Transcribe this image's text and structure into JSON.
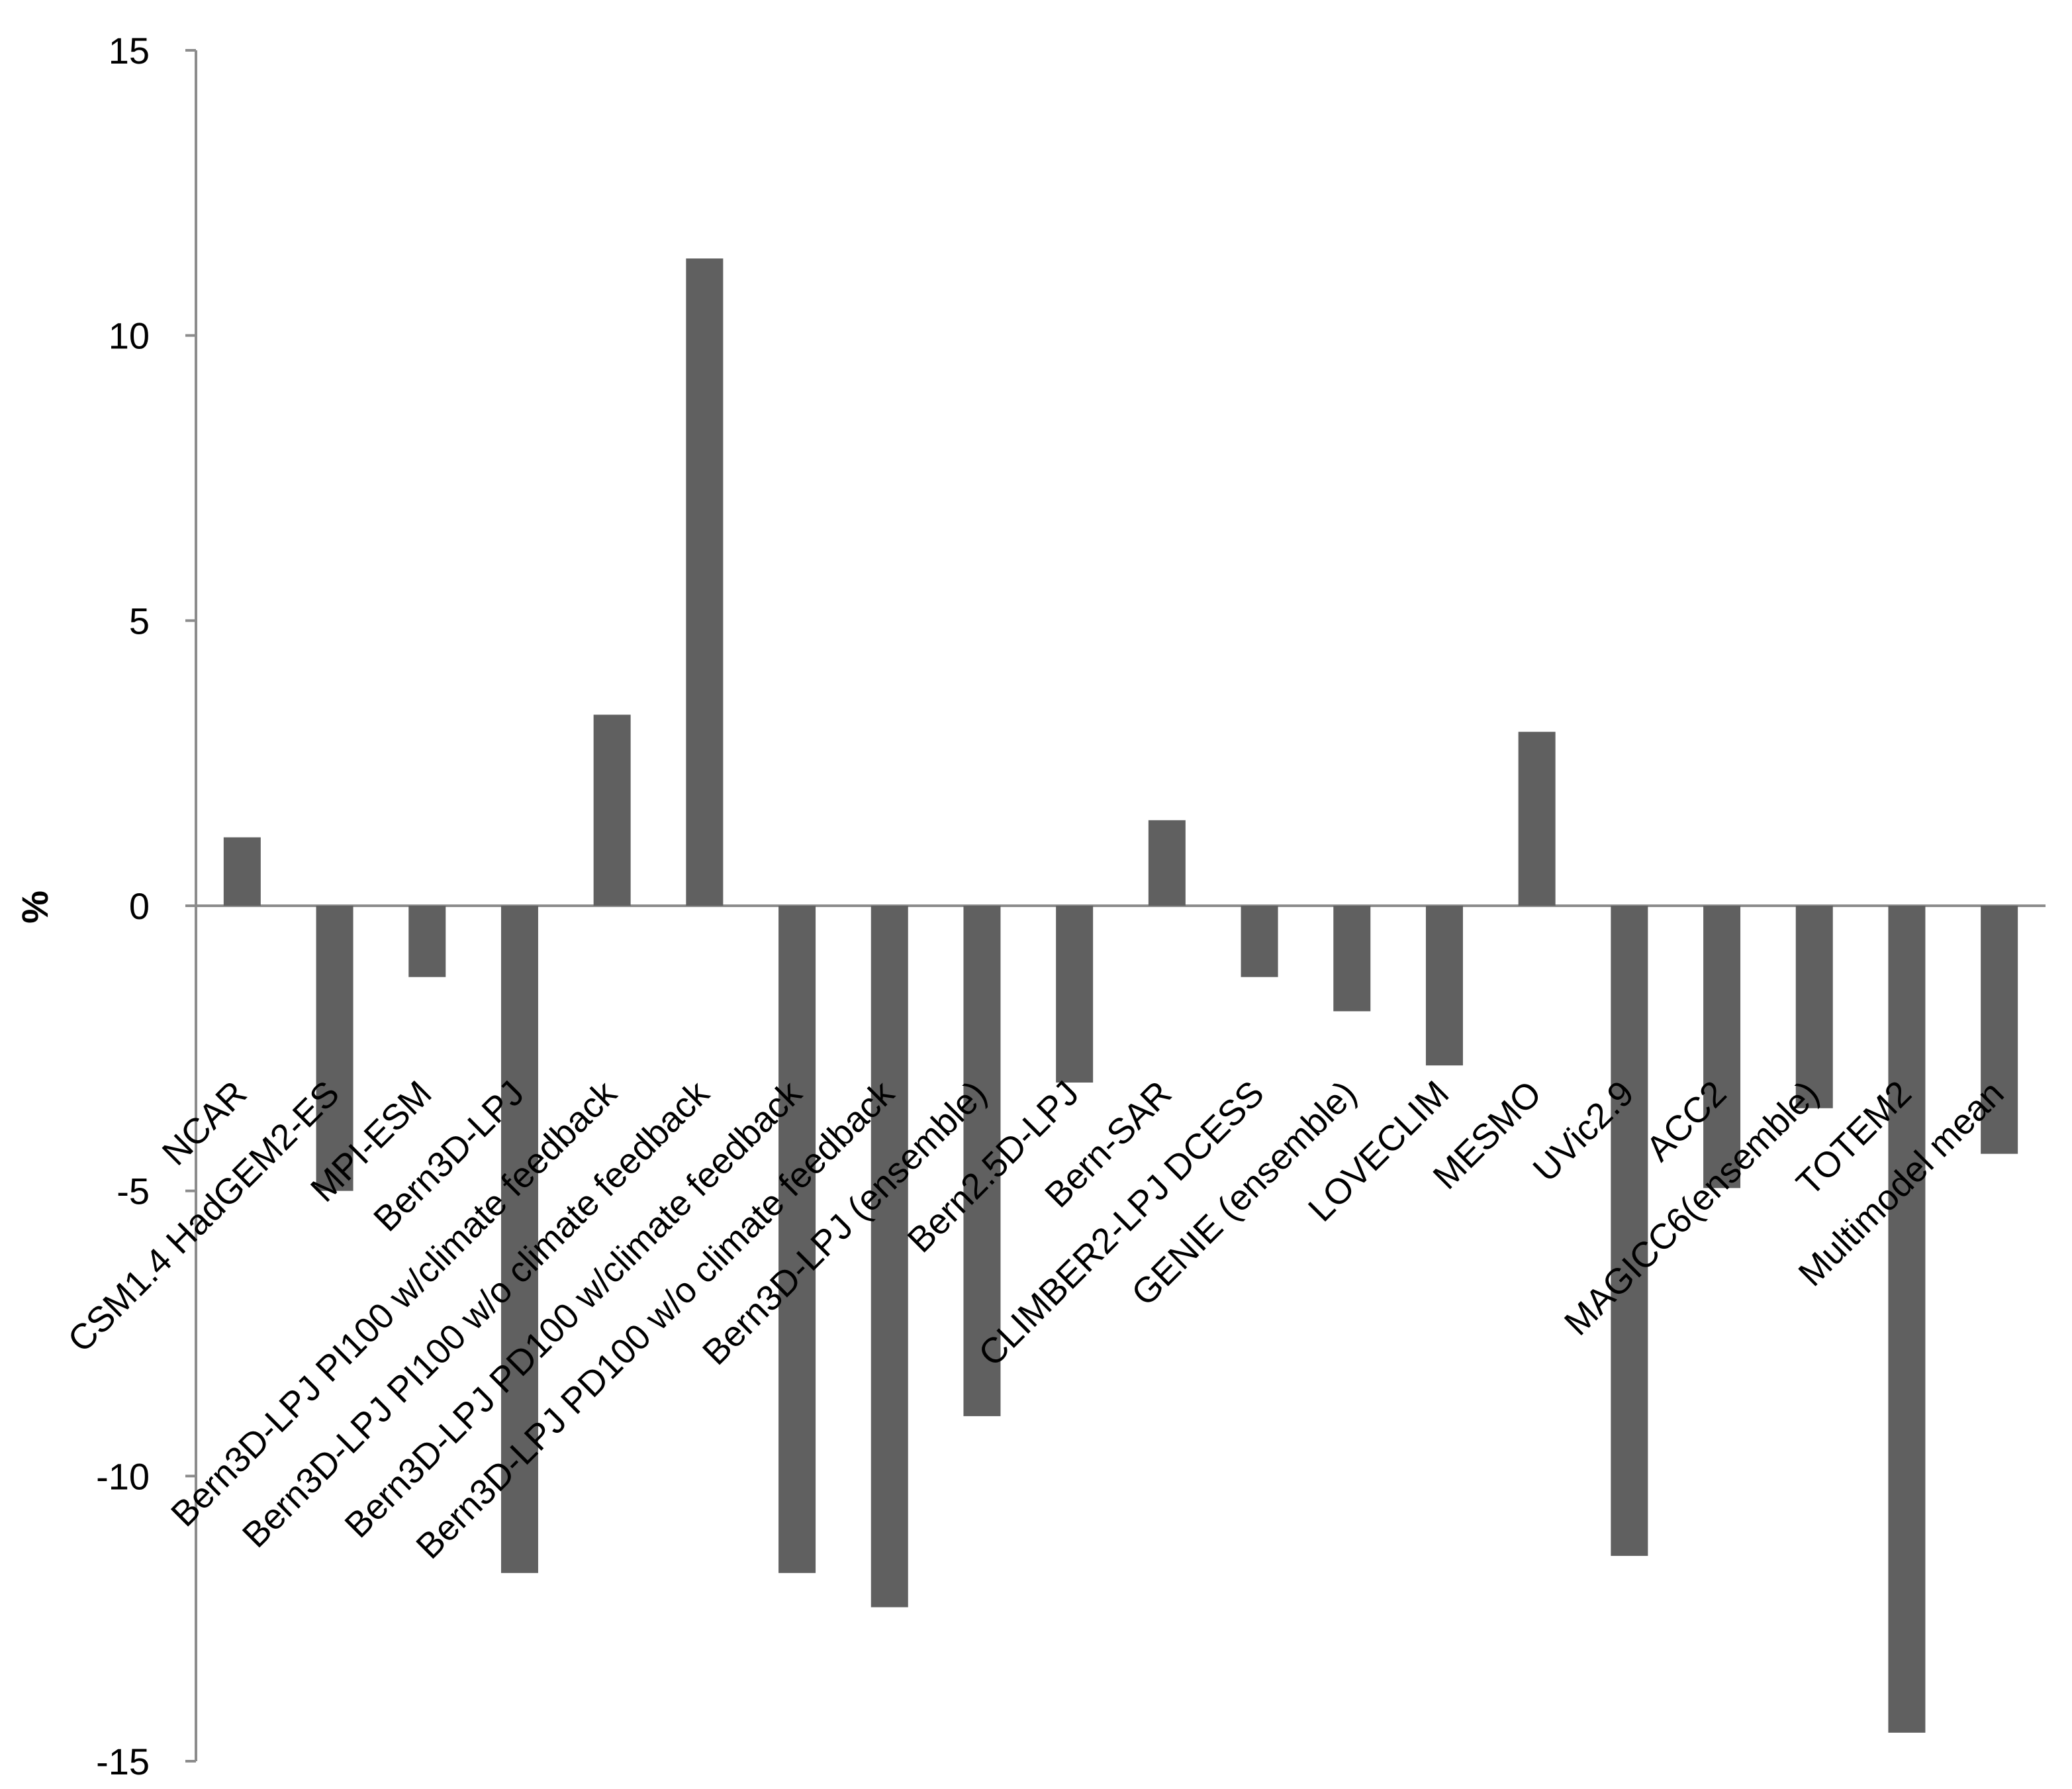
{
  "chart_data": {
    "type": "bar",
    "title": "",
    "xlabel": "",
    "ylabel": "%",
    "ylim": [
      -15,
      15
    ],
    "yticks": [
      15,
      10,
      5,
      0,
      -5,
      -10,
      -15
    ],
    "ytick_labels": [
      "15",
      "10",
      "5",
      "0",
      "-5",
      "-10",
      "-15"
    ],
    "grid": false,
    "legend": "none",
    "bar_color": "#606060",
    "axis_color": "#8c8c8c",
    "categories": [
      "NCAR",
      "CSM1.4 HadGEM2-ES",
      "MPI-ESM",
      "Bern3D-LPJ",
      "Bern3D-LPJ PI100 w/climate feedback",
      "Bern3D-LPJ PI100 w/o climate feedback",
      "Bern3D-LPJ PD100 w/climate feedback",
      "Bern3D-LPJ PD100 w/o climate feedback",
      "Bern3D-LPJ (ensemble)",
      "Bern2.5D-LPJ",
      "Bern-SAR",
      "CLIMBER2-LPJ DCESS",
      "GENIE (ensemble)",
      "LOVECLIM",
      "MESMO",
      "UVic2.9",
      "ACC2",
      "MAGICC6(ensemble)",
      "TOTEM2",
      "Multimodel mean"
    ],
    "values": [
      1.2,
      -5.0,
      -1.25,
      -11.7,
      3.35,
      11.35,
      -11.7,
      -12.3,
      -8.95,
      -3.1,
      1.5,
      -1.25,
      -1.85,
      -2.8,
      3.05,
      -11.4,
      -4.95,
      -3.55,
      -14.5,
      -4.35
    ]
  }
}
